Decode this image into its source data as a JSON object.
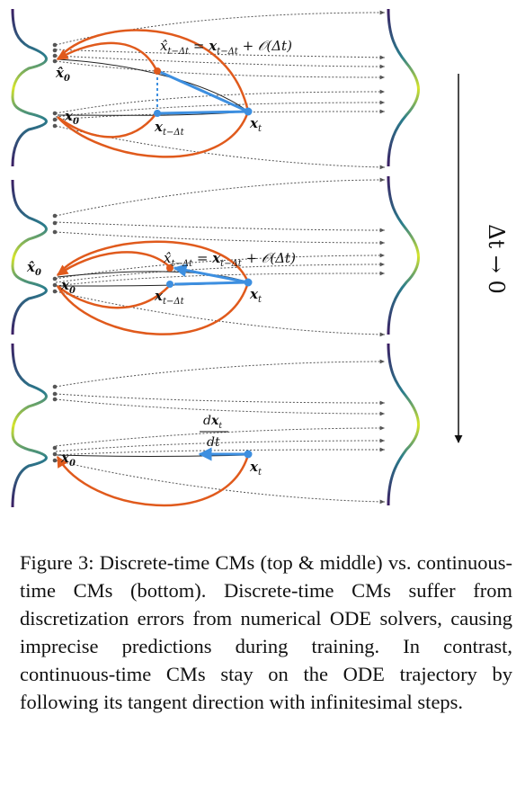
{
  "panels": [
    {
      "id": "top",
      "labels": {
        "x0_hat": "x̂₀",
        "x0": "x₀",
        "x_t_minus": "x_{t−Δt}",
        "x_t": "x_t",
        "equation": "x̂_{t−Δt} = x_{t−Δt} + O(Δt)"
      }
    },
    {
      "id": "middle",
      "labels": {
        "x0_hat": "x̂₀",
        "x0": "x₀",
        "x_t_minus": "x_{t−Δt}",
        "x_t": "x_t",
        "equation": "x̂_{t−Δt} = x_{t−Δt} + O(Δt)"
      }
    },
    {
      "id": "bottom",
      "labels": {
        "x0": "x₀",
        "x_t": "x_t",
        "derivative_num": "dx_t",
        "derivative_den": "dt"
      }
    }
  ],
  "side_label": "Δt → 0",
  "caption": {
    "label": "Figure 3:",
    "text": "Discrete-time CMs (top & middle) vs. continuous-time CMs (bottom). Discrete-time CMs suffer from discretization errors from numerical ODE solvers, causing imprecise predictions during training. In contrast, continuous-time CMs stay on the ODE trajectory by following its tangent direction with infinitesimal steps."
  },
  "colors": {
    "arc": "#e05a1c",
    "step": "#3d8fe0",
    "trajectory": "#222222",
    "dotted": "#555555"
  }
}
